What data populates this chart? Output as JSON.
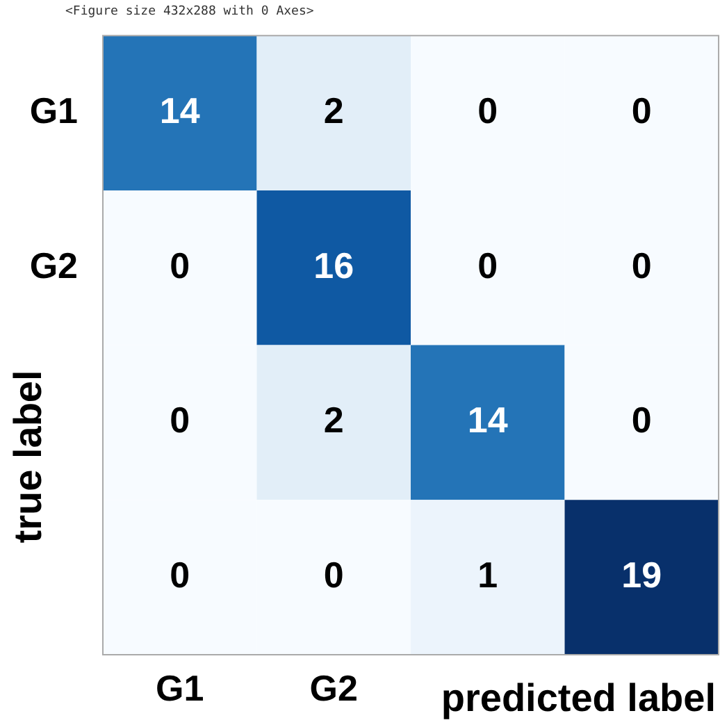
{
  "chart_data": {
    "type": "heatmap",
    "xlabel": "predicted label",
    "ylabel": "true label",
    "annotations": [
      "<Figure size 432x288 with 0 Axes>"
    ],
    "categories": [
      "G1",
      "G2",
      null,
      null
    ],
    "y_categories": [
      "G1",
      "G2",
      null,
      null
    ],
    "cells": [
      [
        14,
        2,
        0,
        0
      ],
      [
        0,
        16,
        0,
        0
      ],
      [
        0,
        2,
        14,
        0
      ],
      [
        0,
        0,
        1,
        19
      ]
    ],
    "data_labels": true,
    "legend": false,
    "grid": false
  }
}
